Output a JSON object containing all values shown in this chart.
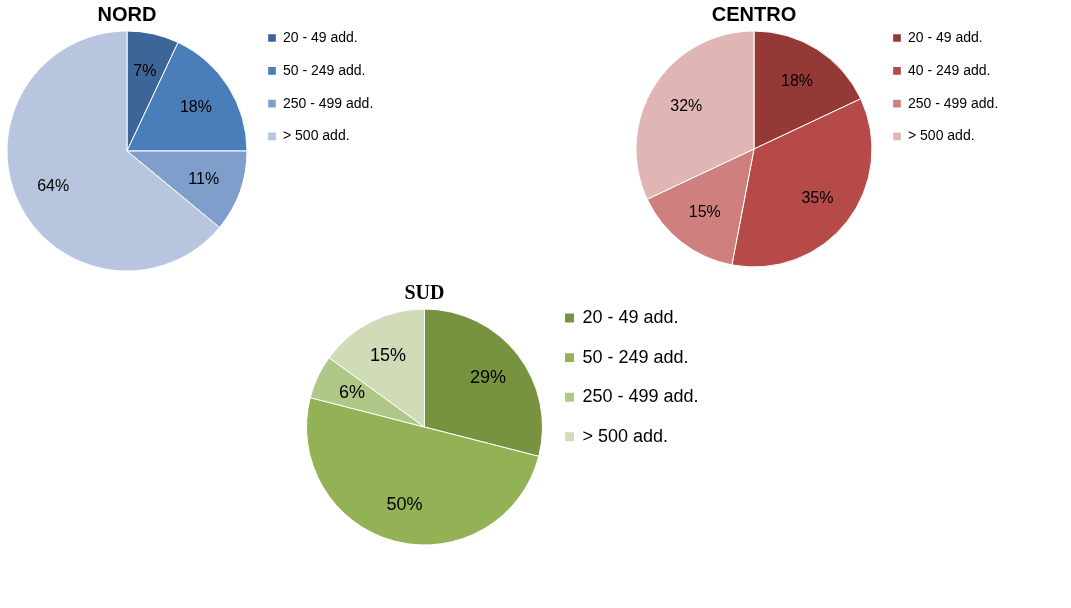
{
  "chart_data": [
    {
      "type": "pie",
      "title": "NORD",
      "categories": [
        "20 - 49  add.",
        "50 - 249 add.",
        "250 - 499 add.",
        "> 500 add."
      ],
      "values": [
        7,
        18,
        11,
        64
      ],
      "colors": [
        "#3d6597",
        "#4a7ebb",
        "#7f9ecb",
        "#b7c5df"
      ],
      "value_labels": [
        "7%",
        "18%",
        "11%",
        "64%"
      ],
      "legend": "right"
    },
    {
      "type": "pie",
      "title": "CENTRO",
      "categories": [
        "20 - 49 add.",
        "40 - 249 add.",
        "250 - 499 add.",
        "> 500 add."
      ],
      "values": [
        18,
        35,
        15,
        32
      ],
      "colors": [
        "#953937",
        "#b64a48",
        "#cf7f7d",
        "#e0b6b5"
      ],
      "value_labels": [
        "18%",
        "35%",
        "15%",
        "32%"
      ],
      "legend": "right"
    },
    {
      "type": "pie",
      "title": "SUD",
      "categories": [
        "20 - 49 add.",
        "50 - 249 add.",
        "250 - 499 add.",
        "> 500 add."
      ],
      "values": [
        29,
        50,
        6,
        15
      ],
      "colors": [
        "#789340",
        "#93b155",
        "#afc887",
        "#d0dcb8"
      ],
      "value_labels": [
        "29%",
        "50%",
        "6%",
        "15%"
      ],
      "legend": "right"
    }
  ]
}
